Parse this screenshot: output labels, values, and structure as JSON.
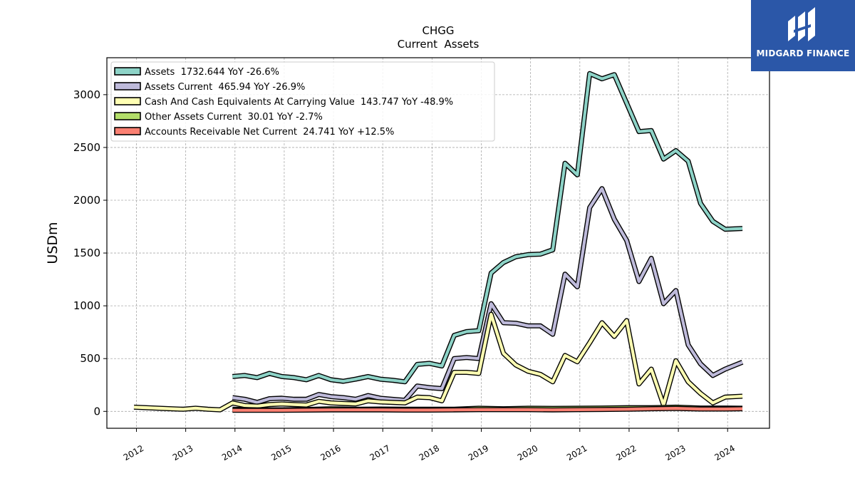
{
  "chart_data": {
    "type": "line",
    "title": "CHGG",
    "subtitle": "Current  Assets",
    "ylabel": "USDm",
    "xlabel": "",
    "x_ticks": [
      "2012",
      "2013",
      "2014",
      "2015",
      "2016",
      "2017",
      "2018",
      "2019",
      "2020",
      "2021",
      "2022",
      "2023",
      "2024"
    ],
    "xlim": [
      2011.4,
      2024.85
    ],
    "ylim": [
      -160,
      3350
    ],
    "y_ticks": [
      0,
      500,
      1000,
      1500,
      2000,
      2500,
      3000
    ],
    "grid": true,
    "legend_position": "top-left",
    "series": [
      {
        "name": "Assets  1732.644 YoY -26.6%",
        "color": "#8dd3c7",
        "points": [
          [
            2013.95,
            330
          ],
          [
            2014.2,
            340
          ],
          [
            2014.45,
            320
          ],
          [
            2014.7,
            360
          ],
          [
            2014.95,
            330
          ],
          [
            2015.2,
            320
          ],
          [
            2015.45,
            300
          ],
          [
            2015.7,
            340
          ],
          [
            2015.95,
            300
          ],
          [
            2016.2,
            285
          ],
          [
            2016.45,
            305
          ],
          [
            2016.7,
            330
          ],
          [
            2016.95,
            305
          ],
          [
            2017.2,
            295
          ],
          [
            2017.45,
            280
          ],
          [
            2017.7,
            445
          ],
          [
            2017.95,
            455
          ],
          [
            2018.2,
            430
          ],
          [
            2018.45,
            720
          ],
          [
            2018.7,
            755
          ],
          [
            2018.95,
            765
          ],
          [
            2019.2,
            1310
          ],
          [
            2019.45,
            1410
          ],
          [
            2019.7,
            1465
          ],
          [
            2019.95,
            1485
          ],
          [
            2020.2,
            1490
          ],
          [
            2020.45,
            1530
          ],
          [
            2020.7,
            2350
          ],
          [
            2020.95,
            2240
          ],
          [
            2021.2,
            3200
          ],
          [
            2021.45,
            3150
          ],
          [
            2021.7,
            3190
          ],
          [
            2021.95,
            2920
          ],
          [
            2022.2,
            2650
          ],
          [
            2022.45,
            2660
          ],
          [
            2022.7,
            2390
          ],
          [
            2022.95,
            2470
          ],
          [
            2023.2,
            2370
          ],
          [
            2023.45,
            1970
          ],
          [
            2023.7,
            1800
          ],
          [
            2023.95,
            1725
          ],
          [
            2024.3,
            1733
          ]
        ]
      },
      {
        "name": "Assets Current  465.94 YoY -26.9%",
        "color": "#bebada",
        "points": [
          [
            2013.95,
            130
          ],
          [
            2014.2,
            115
          ],
          [
            2014.45,
            85
          ],
          [
            2014.7,
            120
          ],
          [
            2014.95,
            125
          ],
          [
            2015.2,
            115
          ],
          [
            2015.45,
            115
          ],
          [
            2015.7,
            160
          ],
          [
            2015.95,
            140
          ],
          [
            2016.2,
            130
          ],
          [
            2016.45,
            115
          ],
          [
            2016.7,
            150
          ],
          [
            2016.95,
            125
          ],
          [
            2017.2,
            115
          ],
          [
            2017.45,
            105
          ],
          [
            2017.7,
            240
          ],
          [
            2017.95,
            225
          ],
          [
            2018.2,
            215
          ],
          [
            2018.45,
            500
          ],
          [
            2018.7,
            510
          ],
          [
            2018.95,
            500
          ],
          [
            2019.2,
            1020
          ],
          [
            2019.45,
            840
          ],
          [
            2019.7,
            835
          ],
          [
            2019.95,
            810
          ],
          [
            2020.2,
            810
          ],
          [
            2020.45,
            730
          ],
          [
            2020.7,
            1300
          ],
          [
            2020.95,
            1180
          ],
          [
            2021.2,
            1930
          ],
          [
            2021.45,
            2110
          ],
          [
            2021.7,
            1820
          ],
          [
            2021.95,
            1620
          ],
          [
            2022.2,
            1230
          ],
          [
            2022.45,
            1450
          ],
          [
            2022.7,
            1020
          ],
          [
            2022.95,
            1145
          ],
          [
            2023.2,
            630
          ],
          [
            2023.45,
            450
          ],
          [
            2023.7,
            340
          ],
          [
            2023.95,
            400
          ],
          [
            2024.3,
            466
          ]
        ]
      },
      {
        "name": "Cash And Cash Equivalents At Carrying Value  143.747 YoY -48.9%",
        "color": "#ffffb3",
        "points": [
          [
            2011.95,
            40
          ],
          [
            2012.2,
            35
          ],
          [
            2012.45,
            30
          ],
          [
            2012.7,
            25
          ],
          [
            2012.95,
            20
          ],
          [
            2013.2,
            30
          ],
          [
            2013.45,
            20
          ],
          [
            2013.7,
            15
          ],
          [
            2013.95,
            80
          ],
          [
            2014.2,
            55
          ],
          [
            2014.45,
            50
          ],
          [
            2014.7,
            65
          ],
          [
            2014.95,
            70
          ],
          [
            2015.2,
            65
          ],
          [
            2015.45,
            60
          ],
          [
            2015.7,
            95
          ],
          [
            2015.95,
            80
          ],
          [
            2016.2,
            75
          ],
          [
            2016.45,
            70
          ],
          [
            2016.7,
            100
          ],
          [
            2016.95,
            90
          ],
          [
            2017.2,
            85
          ],
          [
            2017.45,
            80
          ],
          [
            2017.7,
            135
          ],
          [
            2017.95,
            130
          ],
          [
            2018.2,
            100
          ],
          [
            2018.45,
            370
          ],
          [
            2018.7,
            370
          ],
          [
            2018.95,
            360
          ],
          [
            2019.2,
            920
          ],
          [
            2019.45,
            550
          ],
          [
            2019.7,
            440
          ],
          [
            2019.95,
            380
          ],
          [
            2020.2,
            350
          ],
          [
            2020.45,
            280
          ],
          [
            2020.7,
            530
          ],
          [
            2020.95,
            470
          ],
          [
            2021.2,
            650
          ],
          [
            2021.45,
            840
          ],
          [
            2021.7,
            710
          ],
          [
            2021.95,
            860
          ],
          [
            2022.2,
            260
          ],
          [
            2022.45,
            400
          ],
          [
            2022.7,
            60
          ],
          [
            2022.95,
            480
          ],
          [
            2023.2,
            280
          ],
          [
            2023.45,
            170
          ],
          [
            2023.7,
            80
          ],
          [
            2023.95,
            135
          ],
          [
            2024.3,
            144
          ]
        ]
      },
      {
        "name": "Other Assets Current  30.01 YoY -2.7%",
        "color": "#b3de69",
        "points": [
          [
            2013.95,
            20
          ],
          [
            2014.45,
            15
          ],
          [
            2014.95,
            15
          ],
          [
            2015.45,
            18
          ],
          [
            2015.95,
            25
          ],
          [
            2016.45,
            20
          ],
          [
            2016.95,
            22
          ],
          [
            2017.45,
            20
          ],
          [
            2017.95,
            20
          ],
          [
            2018.45,
            20
          ],
          [
            2018.95,
            30
          ],
          [
            2019.45,
            25
          ],
          [
            2019.95,
            30
          ],
          [
            2020.45,
            28
          ],
          [
            2020.95,
            30
          ],
          [
            2021.45,
            32
          ],
          [
            2021.95,
            35
          ],
          [
            2022.45,
            35
          ],
          [
            2022.95,
            40
          ],
          [
            2023.45,
            32
          ],
          [
            2023.95,
            32
          ],
          [
            2024.3,
            30
          ]
        ]
      },
      {
        "name": "Accounts Receivable Net Current  24.741 YoY +12.5%",
        "color": "#fb8072",
        "points": [
          [
            2013.95,
            10
          ],
          [
            2014.45,
            10
          ],
          [
            2014.95,
            10
          ],
          [
            2015.45,
            12
          ],
          [
            2015.95,
            14
          ],
          [
            2016.45,
            14
          ],
          [
            2016.95,
            14
          ],
          [
            2017.45,
            12
          ],
          [
            2017.95,
            12
          ],
          [
            2018.45,
            14
          ],
          [
            2018.95,
            16
          ],
          [
            2019.45,
            16
          ],
          [
            2019.95,
            16
          ],
          [
            2020.45,
            14
          ],
          [
            2020.95,
            16
          ],
          [
            2021.45,
            18
          ],
          [
            2021.95,
            20
          ],
          [
            2022.45,
            25
          ],
          [
            2022.95,
            28
          ],
          [
            2023.45,
            22
          ],
          [
            2023.95,
            22
          ],
          [
            2024.3,
            25
          ]
        ]
      }
    ]
  },
  "brand": {
    "name": "MIDGARD FINANCE",
    "bg_color": "#2b57a8"
  }
}
